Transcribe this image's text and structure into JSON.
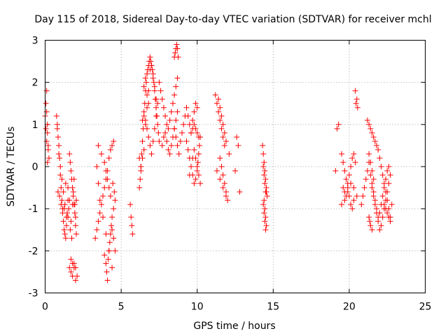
{
  "chart_data": {
    "type": "scatter",
    "title": "Day 115 of 2018, Sidereal Day-to-day VTEC variation (SDTVAR) for receiver mchl",
    "xlabel": "GPS time / hours",
    "ylabel": "SDTVAR / TECUs",
    "xlim": [
      0,
      25
    ],
    "ylim": [
      -3,
      3
    ],
    "xticks": [
      0,
      5,
      10,
      15,
      20,
      25
    ],
    "yticks": [
      -3,
      -2,
      -1,
      0,
      1,
      2,
      3
    ],
    "xtick_labels": [
      "0",
      "5",
      "10",
      "15",
      "20",
      "25"
    ],
    "ytick_labels": [
      "-3",
      "-2",
      "-1",
      "0",
      "1",
      "2",
      "3"
    ],
    "grid": true,
    "marker": "+",
    "color": "#ff0000",
    "series": [
      {
        "name": "SDTVAR",
        "x": [
          0.0,
          0.05,
          0.1,
          0.15,
          0.2,
          0.25,
          0.05,
          0.1,
          0.15,
          0.2,
          0.1,
          0.15,
          0.75,
          0.8,
          0.85,
          0.9,
          0.95,
          1.0,
          1.05,
          1.1,
          1.15,
          1.2,
          1.25,
          1.3,
          1.35,
          1.4,
          1.45,
          1.5,
          0.8,
          0.9,
          1.0,
          1.1,
          1.2,
          1.3,
          1.4,
          1.5,
          0.85,
          0.95,
          1.05,
          1.15,
          1.25,
          1.35,
          1.5,
          1.55,
          1.6,
          1.65,
          1.7,
          1.75,
          1.8,
          1.85,
          1.9,
          1.95,
          2.0,
          2.05,
          1.6,
          1.7,
          1.8,
          1.9,
          2.0,
          2.1,
          1.6,
          1.65,
          1.7,
          1.75,
          1.8,
          1.85,
          1.9,
          1.95,
          2.0,
          2.05,
          1.7,
          1.8,
          1.9,
          2.0,
          3.3,
          3.4,
          3.5,
          3.6,
          3.7,
          3.8,
          3.9,
          4.0,
          4.1,
          4.2,
          4.3,
          4.4,
          4.5,
          3.4,
          3.5,
          3.6,
          3.8,
          4.0,
          4.2,
          4.4,
          3.5,
          3.7,
          3.9,
          4.0,
          4.1,
          4.2,
          4.3,
          3.9,
          4.0,
          4.05,
          4.1,
          4.15,
          4.2,
          4.25,
          4.3,
          4.35,
          4.4,
          4.5,
          4.6,
          4.45,
          4.55,
          4.4,
          4.5,
          4.6,
          5.6,
          5.65,
          5.7,
          5.75,
          6.2,
          6.25,
          6.3,
          6.35,
          6.4,
          6.45,
          6.5,
          6.55,
          6.6,
          6.65,
          6.7,
          6.75,
          6.8,
          6.85,
          6.9,
          6.95,
          7.0,
          7.05,
          7.1,
          7.15,
          7.2,
          7.25,
          7.3,
          7.35,
          7.4,
          7.45,
          7.5,
          6.5,
          6.6,
          6.7,
          6.8,
          6.9,
          7.0,
          7.1,
          7.2,
          7.3,
          7.4,
          6.3,
          6.4,
          6.5,
          6.6,
          6.7,
          6.8,
          6.2,
          6.3,
          6.4,
          6.5,
          6.6,
          6.7,
          6.8,
          6.9,
          7.0,
          7.1,
          7.2,
          7.3,
          7.5,
          7.6,
          7.7,
          7.8,
          7.9,
          8.0,
          8.1,
          8.2,
          8.3,
          8.4,
          8.5,
          8.6,
          8.7,
          7.7,
          7.8,
          7.9,
          8.0,
          8.1,
          8.2,
          8.3,
          8.4,
          8.5,
          8.6,
          8.7,
          8.5,
          8.55,
          8.6,
          8.65,
          8.7,
          8.75,
          8.5,
          8.6,
          8.7,
          8.8,
          8.9,
          9.0,
          9.1,
          9.2,
          9.3,
          9.4,
          9.5,
          9.6,
          9.7,
          9.8,
          9.9,
          10.0,
          9.3,
          9.4,
          9.5,
          9.6,
          9.7,
          9.8,
          9.9,
          10.0,
          10.05,
          10.1,
          10.15,
          10.2,
          9.5,
          9.6,
          9.7,
          9.8,
          9.9,
          10.0,
          10.1,
          10.2,
          9.6,
          9.7,
          9.8,
          9.9,
          10.0,
          10.1,
          11.2,
          11.3,
          11.4,
          11.5,
          11.6,
          11.7,
          11.8,
          11.5,
          11.6,
          11.7,
          11.8,
          11.9,
          12.0,
          11.4,
          11.5,
          11.6,
          11.7,
          11.8,
          11.9,
          11.3,
          11.5,
          11.7,
          11.9,
          12.1,
          12.6,
          12.7,
          12.5,
          12.8,
          14.3,
          14.35,
          14.4,
          14.45,
          14.5,
          14.55,
          14.6,
          14.35,
          14.4,
          14.45,
          14.5,
          14.55,
          14.4,
          14.45,
          14.5,
          14.4,
          14.45,
          14.5,
          14.35,
          14.55,
          19.1,
          19.2,
          19.3,
          19.5,
          19.6,
          19.7,
          19.8,
          19.9,
          20.0,
          20.1,
          20.2,
          20.3,
          19.6,
          19.7,
          19.8,
          19.9,
          20.0,
          20.1,
          20.2,
          20.3,
          20.4,
          19.5,
          19.7,
          19.9,
          20.1,
          20.3,
          20.5,
          20.4,
          20.5,
          20.45,
          20.55,
          20.8,
          20.9,
          21.0,
          21.1,
          21.2,
          21.3,
          21.4,
          21.5,
          21.6,
          21.7,
          21.8,
          21.9,
          22.0,
          22.1,
          22.2,
          22.3,
          22.4,
          22.5,
          22.6,
          22.7,
          21.2,
          21.3,
          21.4,
          21.5,
          21.6,
          21.7,
          21.8,
          21.9,
          22.0,
          22.1,
          22.2,
          22.3,
          22.4,
          22.5,
          22.6,
          22.7,
          21.5,
          21.6,
          21.7,
          21.8,
          21.9,
          22.0,
          22.1,
          22.2,
          22.3,
          22.4,
          22.5,
          22.6,
          21.3,
          21.4,
          21.5,
          21.6,
          21.4,
          21.5,
          21.3,
          21.35,
          22.3,
          22.4,
          22.5,
          22.6,
          22.7,
          22.8
        ],
        "y": [
          1.2,
          0.9,
          0.6,
          1.0,
          0.4,
          0.2,
          1.5,
          1.8,
          0.8,
          0.5,
          1.3,
          0.1,
          1.2,
          1.0,
          0.7,
          0.5,
          0.2,
          -0.2,
          -0.5,
          -0.8,
          -1.0,
          -1.3,
          -1.5,
          -1.6,
          -1.7,
          -1.4,
          -1.1,
          -0.8,
          0.9,
          0.3,
          0.0,
          -0.3,
          -0.6,
          -0.9,
          -1.2,
          -0.5,
          -0.6,
          -0.7,
          -0.9,
          -1.1,
          -1.0,
          -0.4,
          -1.2,
          -1.0,
          -0.8,
          -1.5,
          -1.3,
          -1.7,
          -0.9,
          -0.6,
          -0.3,
          -0.9,
          -1.2,
          -0.8,
          -2.4,
          -2.5,
          -2.6,
          -2.3,
          -2.4,
          -2.6,
          0.3,
          0.1,
          -0.1,
          -0.3,
          -0.5,
          -0.7,
          -0.9,
          -1.1,
          -1.4,
          -1.6,
          -2.2,
          -2.3,
          -2.4,
          -2.7,
          -1.7,
          -1.5,
          -1.3,
          -1.1,
          -0.9,
          -0.7,
          -0.5,
          -0.3,
          -0.1,
          0.2,
          0.4,
          0.5,
          0.6,
          0.0,
          -0.4,
          -0.8,
          -1.2,
          -1.6,
          -2.0,
          -2.4,
          0.5,
          0.3,
          0.1,
          -0.1,
          -0.3,
          -0.5,
          -0.7,
          -2.1,
          -2.3,
          -2.5,
          -2.7,
          -2.2,
          -2.0,
          -1.8,
          -1.6,
          -1.4,
          -1.2,
          -1.0,
          -0.8,
          -0.4,
          -0.6,
          -1.5,
          -1.7,
          -2.0,
          -0.9,
          -1.2,
          -1.4,
          -1.6,
          -0.5,
          -0.3,
          0.0,
          0.3,
          0.6,
          0.9,
          1.2,
          1.5,
          1.8,
          2.0,
          2.2,
          2.3,
          2.4,
          2.5,
          2.6,
          2.5,
          2.4,
          2.3,
          2.2,
          2.0,
          1.8,
          1.6,
          1.4,
          1.2,
          1.0,
          0.8,
          0.6,
          1.3,
          1.1,
          0.9,
          0.7,
          0.5,
          0.3,
          0.6,
          0.9,
          1.2,
          1.5,
          0.0,
          0.2,
          0.4,
          1.0,
          1.4,
          1.8,
          0.2,
          -0.1,
          1.1,
          1.9,
          2.1,
          1.7,
          1.5,
          2.3,
          2.4,
          2.1,
          1.9,
          1.6,
          2.0,
          1.8,
          1.6,
          1.4,
          1.2,
          1.0,
          0.9,
          1.1,
          1.3,
          1.5,
          1.7,
          1.9,
          2.1,
          0.5,
          0.7,
          0.8,
          0.6,
          0.4,
          0.3,
          0.5,
          0.7,
          0.9,
          1.1,
          1.3,
          2.6,
          2.7,
          2.8,
          2.9,
          2.8,
          2.6,
          0.9,
          0.7,
          0.5,
          0.3,
          0.6,
          0.8,
          1.0,
          1.2,
          1.4,
          1.2,
          1.0,
          0.8,
          1.1,
          1.3,
          1.5,
          1.4,
          0.6,
          0.4,
          0.2,
          0.0,
          -0.2,
          -0.4,
          -0.3,
          -0.1,
          0.1,
          0.3,
          0.5,
          0.7,
          -0.2,
          0.0,
          0.2,
          0.4,
          0.2,
          0.0,
          -0.2,
          -0.4,
          0.8,
          0.9,
          1.0,
          0.9,
          0.8,
          0.7,
          1.7,
          1.5,
          1.3,
          1.1,
          0.9,
          0.7,
          0.5,
          0.2,
          0.0,
          -0.2,
          -0.4,
          -0.6,
          -0.8,
          1.6,
          1.4,
          1.2,
          1.0,
          0.8,
          0.6,
          -0.1,
          -0.3,
          -0.5,
          -0.7,
          0.3,
          0.7,
          0.5,
          -0.1,
          -0.6,
          0.5,
          0.3,
          0.1,
          -0.1,
          -0.3,
          -0.5,
          -0.7,
          -0.9,
          -1.1,
          -1.3,
          -1.5,
          -1.4,
          -0.2,
          -0.4,
          -0.6,
          -0.8,
          -1.0,
          -1.2,
          0.0,
          -0.6,
          -0.1,
          0.9,
          1.0,
          0.3,
          0.1,
          -0.1,
          -0.3,
          -0.5,
          -0.7,
          -0.9,
          -1.0,
          -0.8,
          -0.5,
          -0.6,
          -0.7,
          -0.4,
          -0.2,
          0.0,
          0.2,
          0.3,
          0.1,
          -0.9,
          -0.8,
          -0.6,
          -0.4,
          -0.5,
          -0.7,
          1.8,
          1.6,
          1.5,
          1.4,
          -0.9,
          -0.7,
          -0.5,
          -0.3,
          -0.1,
          0.1,
          -0.2,
          -0.4,
          -0.6,
          -0.8,
          -1.0,
          -1.2,
          -1.1,
          -0.9,
          -0.7,
          -0.5,
          -0.3,
          -0.1,
          0.0,
          -0.2,
          1.1,
          1.0,
          0.9,
          0.8,
          0.7,
          0.6,
          0.5,
          0.4,
          0.2,
          0.0,
          -0.2,
          -0.4,
          -0.6,
          -0.8,
          -1.0,
          -1.2,
          -0.5,
          -0.7,
          -0.9,
          -1.1,
          -1.3,
          -1.5,
          -1.4,
          -1.2,
          -1.0,
          -0.8,
          -0.6,
          -0.4,
          0.3,
          0.1,
          -0.1,
          -0.3,
          -1.4,
          -1.5,
          -1.2,
          -1.3,
          -0.9,
          -1.0,
          -1.1,
          -1.2,
          -1.3,
          -0.9
        ]
      }
    ]
  }
}
